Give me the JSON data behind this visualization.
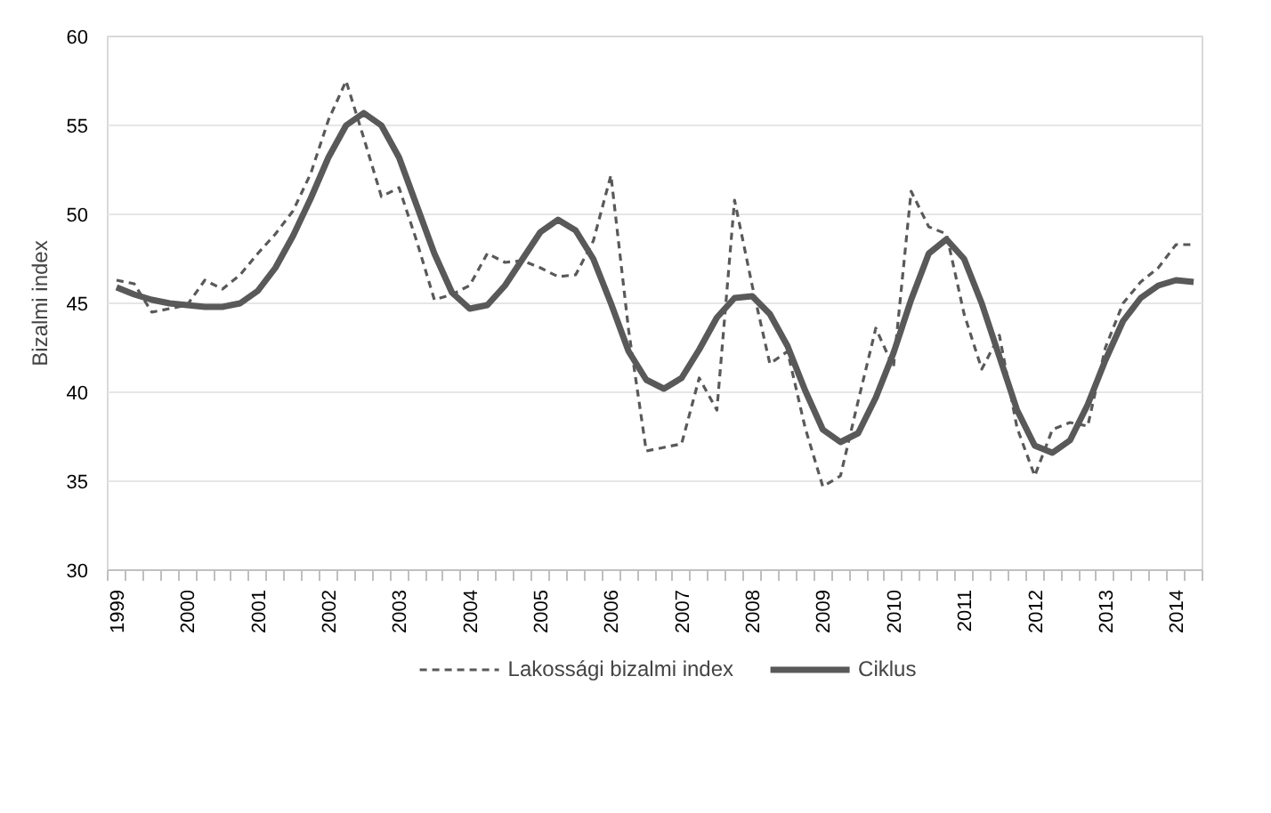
{
  "chart_data": {
    "type": "line",
    "ylabel": "Bizalmi index",
    "categories": [
      "1999",
      null,
      null,
      null,
      "2000",
      null,
      null,
      null,
      "2001",
      null,
      null,
      null,
      "2002",
      null,
      null,
      null,
      "2003",
      null,
      null,
      null,
      "2004",
      null,
      null,
      null,
      "2005",
      null,
      null,
      null,
      "2006",
      null,
      null,
      null,
      "2007",
      null,
      null,
      null,
      "2008",
      null,
      null,
      null,
      "2009",
      null,
      null,
      null,
      "2010",
      null,
      null,
      null,
      "2011",
      null,
      null,
      null,
      "2012",
      null,
      null,
      null,
      "2013",
      null,
      null,
      null,
      "2014",
      null
    ],
    "series": [
      {
        "name": "Lakossági bizalmi index",
        "color": "#595959",
        "line_style": "dashed",
        "values": [
          46.3,
          46.1,
          44.5,
          44.7,
          44.9,
          46.3,
          45.8,
          46.6,
          47.8,
          48.9,
          50.2,
          52.3,
          55.3,
          57.5,
          54.3,
          51.0,
          51.5,
          48.5,
          45.2,
          45.5,
          46.0,
          47.8,
          47.3,
          47.4,
          47.0,
          46.5,
          46.6,
          48.5,
          52.2,
          43.5,
          36.7,
          36.9,
          37.1,
          40.8,
          39.0,
          50.8,
          46.0,
          41.6,
          42.3,
          38.0,
          34.7,
          35.3,
          39.5,
          43.6,
          41.4,
          51.3,
          49.3,
          48.9,
          44.4,
          41.3,
          43.2,
          38.0,
          35.3,
          37.9,
          38.3,
          38.1,
          42.5,
          45.0,
          46.2,
          47.0,
          48.3,
          48.3
        ]
      },
      {
        "name": "Ciklus",
        "color": "#595959",
        "line_style": "solid",
        "values": [
          45.9,
          45.5,
          45.2,
          45.0,
          44.9,
          44.8,
          44.8,
          45.0,
          45.7,
          47.0,
          48.8,
          50.9,
          53.2,
          55.0,
          55.7,
          55.0,
          53.2,
          50.5,
          47.8,
          45.6,
          44.7,
          44.9,
          46.0,
          47.5,
          49.0,
          49.7,
          49.1,
          47.5,
          45.0,
          42.3,
          40.7,
          40.2,
          40.8,
          42.4,
          44.2,
          45.3,
          45.4,
          44.4,
          42.6,
          40.1,
          37.9,
          37.2,
          37.7,
          39.7,
          42.2,
          45.2,
          47.8,
          48.6,
          47.5,
          45.0,
          42.0,
          39.0,
          37.0,
          36.6,
          37.3,
          39.3,
          41.8,
          44.0,
          45.3,
          46.0,
          46.3,
          46.2
        ]
      }
    ],
    "ylim": [
      30,
      60
    ],
    "yticks": [
      30,
      35,
      40,
      45,
      50,
      55,
      60
    ],
    "grid": "y",
    "legend": "bottom",
    "marker": "none"
  }
}
